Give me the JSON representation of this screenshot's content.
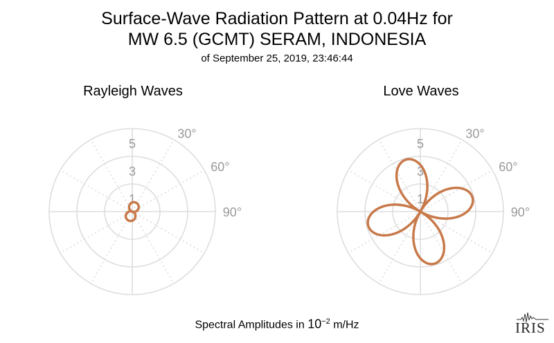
{
  "title": {
    "line1": "Surface-Wave Radiation Pattern at 0.04Hz for",
    "line2": "MW 6.5 (GCMT) SERAM, INDONESIA",
    "line3": "of September 25, 2019, 23:46:44"
  },
  "footer": {
    "prefix": "Spectral Amplitudes in ",
    "base": "10",
    "exponent": "−2",
    "suffix": " m/Hz"
  },
  "logo": {
    "text": "IRIS"
  },
  "colors": {
    "pattern": "#c8794a",
    "grid": "#dddddd",
    "label": "#999999"
  },
  "chart_data": [
    {
      "type": "polar-line",
      "title": "Rayleigh Waves",
      "radial_ticks": [
        "1",
        "3",
        "5"
      ],
      "radial_max": 6,
      "angle_ticks": [
        "30°",
        "60°",
        "90°"
      ],
      "angle_zero": "north (top)",
      "direction": "clockwise",
      "grid": true,
      "series": [
        {
          "shape": "figure-eight",
          "max_amplitude": 0.7,
          "lobe_axis_deg": 20,
          "angles_deg": [
            0,
            30,
            60,
            90,
            120,
            150,
            180,
            210,
            240,
            270,
            300,
            330
          ],
          "amplitudes": [
            0.66,
            0.6,
            0.35,
            0.1,
            0.33,
            0.62,
            0.66,
            0.6,
            0.35,
            0.1,
            0.33,
            0.62
          ]
        }
      ]
    },
    {
      "type": "polar-line",
      "title": "Love Waves",
      "radial_ticks": [
        "1",
        "3",
        "5"
      ],
      "radial_max": 6,
      "angle_ticks": [
        "30°",
        "60°",
        "90°"
      ],
      "angle_zero": "north (top)",
      "direction": "clockwise",
      "grid": true,
      "series": [
        {
          "shape": "four-lobe",
          "max_amplitude": 3.9,
          "lobe_peak_angles_deg": [
            -15,
            75,
            165,
            255
          ],
          "angles_deg": [
            0,
            30,
            60,
            90,
            120,
            150,
            180,
            210,
            240,
            270,
            300,
            330
          ],
          "amplitudes": [
            3.4,
            0.0,
            3.4,
            3.4,
            0.0,
            3.4,
            3.4,
            0.0,
            3.4,
            3.4,
            0.0,
            3.4
          ]
        }
      ]
    }
  ]
}
